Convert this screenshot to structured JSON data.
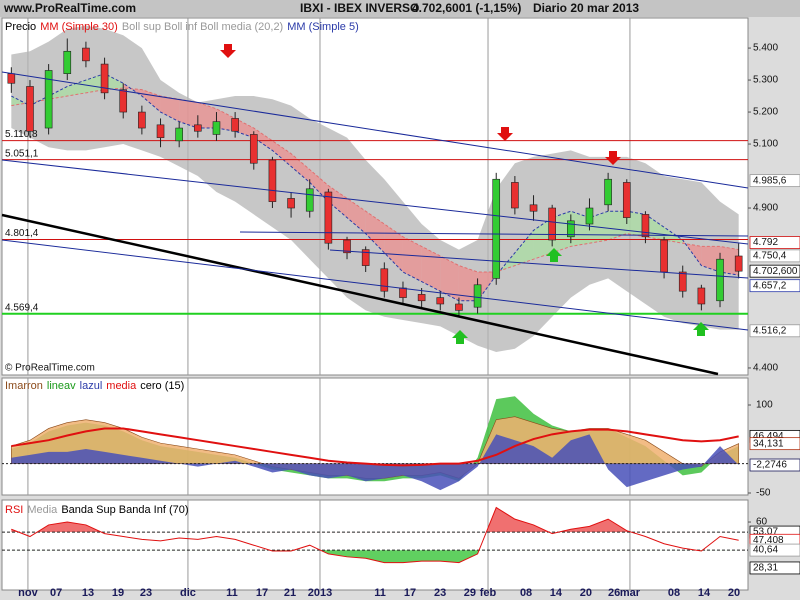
{
  "chart_data": {
    "type": "candlestick",
    "site": "www.ProRealTime.com",
    "title": "IBXI - IBEX INVERSO",
    "quote": "4.702,6001 (-1,15%)",
    "period": "Diario  20 mar 2013",
    "copyright": "© ProRealTime.com",
    "legend": [
      "Precio",
      "MM (Simple 30)",
      "Boll sup Boll inf Boll media (20,2)",
      "MM (Simple 5)"
    ],
    "categories": [
      null,
      null,
      null,
      null,
      null,
      null,
      null,
      null,
      null,
      null,
      null,
      null,
      null,
      null,
      null,
      null,
      null,
      null,
      null,
      null,
      null,
      null,
      null,
      null,
      null,
      null,
      null,
      null,
      null,
      null,
      null,
      null,
      null,
      null,
      null,
      null,
      null,
      null,
      null,
      null
    ],
    "xlim": [
      0,
      40
    ],
    "xticks": [
      {
        "value": 1.39,
        "label": "nov"
      },
      {
        "value": 2.9,
        "label": "07"
      },
      {
        "value": 4.61,
        "label": "13"
      },
      {
        "value": 6.22,
        "label": "19"
      },
      {
        "value": 7.72,
        "label": "23"
      },
      {
        "value": 9.97,
        "label": "dic"
      },
      {
        "value": 12.33,
        "label": "11"
      },
      {
        "value": 13.94,
        "label": "17"
      },
      {
        "value": 15.44,
        "label": "21"
      },
      {
        "value": 17.05,
        "label": "2013"
      },
      {
        "value": 20.27,
        "label": "11"
      },
      {
        "value": 21.88,
        "label": "17"
      },
      {
        "value": 23.49,
        "label": "23"
      },
      {
        "value": 25.09,
        "label": "29"
      },
      {
        "value": 26.06,
        "label": "feb"
      },
      {
        "value": 28.1,
        "label": "08"
      },
      {
        "value": 29.7,
        "label": "14"
      },
      {
        "value": 31.31,
        "label": "20"
      },
      {
        "value": 32.82,
        "label": "26"
      },
      {
        "value": 33.67,
        "label": "mar"
      },
      {
        "value": 36.03,
        "label": "08"
      },
      {
        "value": 37.64,
        "label": "14"
      },
      {
        "value": 39.25,
        "label": "20"
      }
    ],
    "ylim": [
      4378,
      5494
    ],
    "yticks": [
      {
        "value": 5400,
        "label": "5.400"
      },
      {
        "value": 5300,
        "label": "5.300"
      },
      {
        "value": 5200,
        "label": "5.200"
      },
      {
        "value": 5100,
        "label": "5.100"
      },
      {
        "value": 4900,
        "label": "4.900"
      },
      {
        "value": 4400,
        "label": "4.400"
      }
    ],
    "open": [
      5320,
      5280,
      5150,
      5320,
      5400,
      5350,
      5270,
      5200,
      5160,
      5110,
      5160,
      5130,
      5180,
      5130,
      5050,
      4930,
      4890,
      4950,
      4800,
      4770,
      4710,
      4650,
      4630,
      4620,
      4600,
      4590,
      4680,
      4980,
      4910,
      4900,
      4810,
      4850,
      4910,
      4980,
      4880,
      4800,
      4700,
      4650,
      4610,
      4750
    ],
    "high": [
      5340,
      5300,
      5350,
      5430,
      5420,
      5370,
      5290,
      5220,
      5180,
      5170,
      5190,
      5200,
      5200,
      5140,
      5060,
      4950,
      4990,
      4960,
      4810,
      4780,
      4730,
      4670,
      4650,
      4640,
      4620,
      4680,
      5010,
      5000,
      4940,
      4910,
      4880,
      4930,
      5010,
      4990,
      4890,
      4810,
      4720,
      4660,
      4760,
      4790
    ],
    "low": [
      5260,
      5120,
      5130,
      5300,
      5340,
      5240,
      5180,
      5130,
      5090,
      5090,
      5120,
      5110,
      5120,
      5020,
      4900,
      4870,
      4870,
      4770,
      4740,
      4700,
      4620,
      4600,
      4590,
      4580,
      4560,
      4570,
      4660,
      4880,
      4860,
      4780,
      4790,
      4830,
      4890,
      4850,
      4790,
      4680,
      4620,
      4580,
      4590,
      4680
    ],
    "close": [
      5290,
      5140,
      5330,
      5390,
      5360,
      5260,
      5200,
      5150,
      5120,
      5150,
      5140,
      5170,
      5140,
      5040,
      4920,
      4900,
      4960,
      4790,
      4760,
      4720,
      4640,
      4620,
      4610,
      4600,
      4580,
      4660,
      4990,
      4900,
      4890,
      4800,
      4860,
      4900,
      4990,
      4870,
      4810,
      4700,
      4640,
      4600,
      4740,
      4702.6
    ],
    "boll_sup": [
      5380,
      5390,
      5420,
      5460,
      5470,
      5460,
      5440,
      5400,
      5300,
      5260,
      5230,
      5240,
      5250,
      5250,
      5240,
      5220,
      5180,
      5150,
      5120,
      5050,
      4990,
      4920,
      4850,
      4800,
      4770,
      4800,
      4960,
      5040,
      5060,
      5070,
      5080,
      5060,
      5060,
      5060,
      5040,
      5000,
      4990,
      4980,
      4920,
      4880
    ],
    "boll_inf": [
      5150,
      5120,
      5090,
      5080,
      5080,
      5090,
      5100,
      5080,
      5060,
      5030,
      5000,
      4950,
      4920,
      4880,
      4840,
      4800,
      4740,
      4680,
      4620,
      4580,
      4560,
      4550,
      4540,
      4530,
      4500,
      4470,
      4450,
      4460,
      4500,
      4560,
      4620,
      4660,
      4680,
      4640,
      4600,
      4560,
      4540,
      4530,
      4520,
      4520
    ],
    "mm30": [
      5220,
      5230,
      5240,
      5250,
      5260,
      5270,
      5275,
      5270,
      5250,
      5240,
      5230,
      5210,
      5180,
      5150,
      5110,
      5070,
      5020,
      4970,
      4930,
      4890,
      4850,
      4810,
      4780,
      4750,
      4720,
      4700,
      4700,
      4720,
      4740,
      4760,
      4780,
      4790,
      4800,
      4820,
      4810,
      4800,
      4790,
      4780,
      4780,
      4770
    ],
    "mm5": [
      5250,
      5220,
      5250,
      5280,
      5300,
      5320,
      5290,
      5250,
      5200,
      5170,
      5150,
      5150,
      5140,
      5120,
      5080,
      5030,
      4980,
      4920,
      4870,
      4820,
      4760,
      4700,
      4670,
      4640,
      4610,
      4610,
      4690,
      4760,
      4830,
      4870,
      4890,
      4870,
      4890,
      4890,
      4880,
      4840,
      4800,
      4720,
      4700,
      4690
    ],
    "colors": {
      "up": "#33cc33",
      "down": "#e83030",
      "boll": "#b4b4b4",
      "mm30": "#e07070",
      "mm5": "#2a3aa8",
      "fill_down": "#f08c8c",
      "fill_up": "#a8e0a0"
    },
    "levels": [
      {
        "value": 5110.8,
        "label": "5.110,8",
        "color": "#d01010"
      },
      {
        "value": 5051.1,
        "label": "5.051,1",
        "color": "#d01010"
      },
      {
        "value": 4801.4,
        "label": "4.801,4",
        "color": "#d01010"
      },
      {
        "value": 4569.4,
        "label": "4.569,4",
        "color": "#20d020"
      }
    ],
    "value_boxes": [
      {
        "value": 4985.6,
        "label": "4.985,6",
        "color": "#999999"
      },
      {
        "value": 4792,
        "label": "4.792",
        "color": "#d01010"
      },
      {
        "value": 4750.4,
        "label": "4.750,4",
        "color": "#999999"
      },
      {
        "value": 4702.6,
        "label": "4.702,600",
        "color": "#000000"
      },
      {
        "value": 4657.2,
        "label": "4.657,2",
        "color": "#2a3aa8"
      },
      {
        "value": 4516.2,
        "label": "4.516,2",
        "color": "#999999"
      }
    ],
    "oscillator": {
      "legend": [
        "Imarron",
        "lineav",
        "lazul",
        "media",
        "cero (15)"
      ],
      "legend_colors": [
        "#8b4a1a",
        "#1a9a1a",
        "#2a3aa8",
        "#e01010",
        "#000000"
      ],
      "ylim": [
        -53.4,
        146
      ],
      "yticks": [
        100,
        -50
      ],
      "verde": [
        25,
        35,
        55,
        65,
        70,
        65,
        55,
        40,
        30,
        25,
        20,
        15,
        10,
        0,
        -10,
        -15,
        -20,
        -25,
        -25,
        -30,
        -30,
        -25,
        -25,
        -20,
        -30,
        10,
        110,
        115,
        85,
        65,
        55,
        55,
        60,
        45,
        30,
        5,
        -20,
        -15,
        15,
        30
      ],
      "marron": [
        30,
        40,
        60,
        70,
        75,
        70,
        60,
        45,
        35,
        30,
        25,
        20,
        15,
        5,
        -5,
        -10,
        -15,
        -20,
        -20,
        -25,
        -25,
        -20,
        -20,
        -15,
        -25,
        0,
        75,
        80,
        70,
        60,
        55,
        60,
        60,
        50,
        40,
        20,
        0,
        -5,
        20,
        34.131
      ],
      "azul": [
        10,
        15,
        20,
        20,
        25,
        20,
        15,
        10,
        5,
        0,
        -5,
        0,
        5,
        -5,
        -15,
        -10,
        -20,
        -25,
        -20,
        -30,
        -25,
        -20,
        -30,
        -45,
        -30,
        -5,
        50,
        40,
        30,
        10,
        40,
        50,
        -10,
        -40,
        -30,
        -20,
        -10,
        -5,
        30,
        -2.2746
      ],
      "media": [
        30,
        35,
        40,
        48,
        55,
        60,
        60,
        55,
        50,
        45,
        40,
        35,
        30,
        25,
        20,
        15,
        10,
        5,
        2,
        0,
        -2,
        -3,
        -2,
        0,
        0,
        5,
        15,
        30,
        42,
        50,
        55,
        58,
        58,
        55,
        50,
        45,
        40,
        38,
        40,
        46.494
      ],
      "colors": {
        "verde": "#40c040",
        "marron": "#f0b070",
        "azul": "#4850b8",
        "media": "#e01010"
      },
      "value_boxes": [
        {
          "value": 46.494,
          "label": "46,494",
          "color": "#000000"
        },
        {
          "value": 34.131,
          "label": "34,131",
          "color": "#b03010"
        },
        {
          "value": -2.2746,
          "label": "-2,2746",
          "color": "#1a1a5a"
        }
      ]
    },
    "rsi": {
      "legend": [
        "RSI",
        "Media",
        "Banda Sup Banda Inf (70)"
      ],
      "legend_colors": [
        "#e01010",
        "#999999",
        "#000000"
      ],
      "ylim": [
        13.1,
        75.2
      ],
      "yticks": [
        60
      ],
      "values": [
        55,
        50,
        58,
        60,
        58,
        52,
        50,
        48,
        47,
        49,
        48,
        50,
        48,
        44,
        40,
        40,
        44,
        38,
        36,
        35,
        32,
        32,
        33,
        33,
        32,
        38,
        70,
        62,
        58,
        52,
        55,
        57,
        62,
        54,
        50,
        45,
        42,
        40,
        50,
        47.408
      ],
      "upper_band": 53.07,
      "lower_band": 40.64,
      "colors": {
        "line": "#e01010",
        "over": "#f07070",
        "under": "#60d060"
      },
      "value_boxes": [
        {
          "value": 53.07,
          "label": "53,07",
          "color": "#000000"
        },
        {
          "value": 47.408,
          "label": "47,408",
          "color": "#e01010"
        },
        {
          "value": 40.64,
          "label": "40,64",
          "color": "#999999"
        },
        {
          "value": 28.31,
          "label": "28,31",
          "color": "#000000"
        }
      ]
    }
  }
}
